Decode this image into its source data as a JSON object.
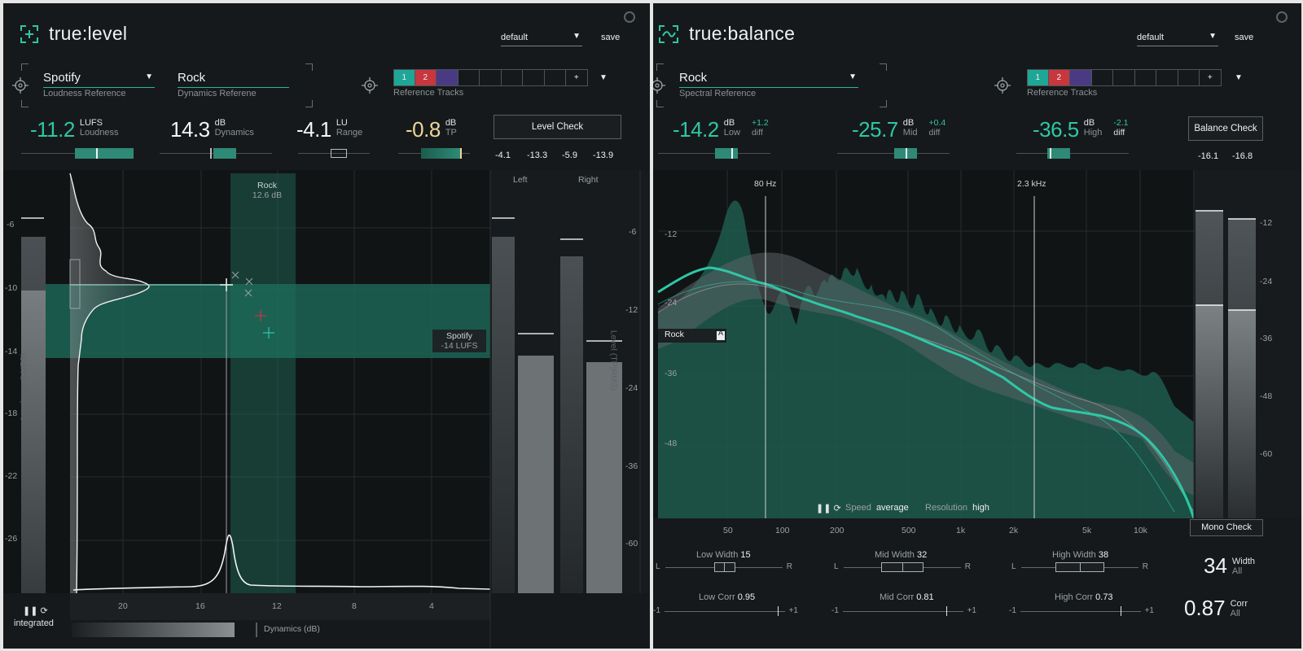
{
  "true_level": {
    "logo": "true:level",
    "preset": "default",
    "save_label": "save",
    "loudness_ref": {
      "value": "Spotify",
      "caption": "Loudness Reference"
    },
    "dynamics_ref": {
      "value": "Rock",
      "caption": "Dynamics Referene"
    },
    "reference_tracks": {
      "caption": "Reference Tracks",
      "slots": [
        "1",
        "2",
        "",
        "",
        "",
        "",
        "",
        "",
        "+"
      ],
      "colors": [
        "#1ea796",
        "#c8363e",
        "#4a3a84"
      ]
    },
    "meters": [
      {
        "value": "-11.2",
        "unit": "LUFS",
        "label": "Loudness",
        "color": "#2ec7a6"
      },
      {
        "value": "14.3",
        "unit": "dB",
        "label": "Dynamics",
        "color": "#f2f4f5"
      },
      {
        "value": "-4.1",
        "unit": "LU",
        "label": "Range",
        "color": "#f2f4f5"
      },
      {
        "value": "-0.8",
        "unit": "dB",
        "label": "TP",
        "color": "#ecd79a"
      }
    ],
    "level_check_label": "Level Check",
    "level_check_values": [
      "-4.1",
      "-13.3",
      "-5.9",
      "-13.9"
    ],
    "loudness_axis_label": "Loudness (LUFS)",
    "loudness_ticks": [
      "-6",
      "-10",
      "-14",
      "-18",
      "-22",
      "-26"
    ],
    "dynamics_ticks": [
      "20",
      "16",
      "12",
      "8",
      "4"
    ],
    "dynamics_axis_label": "Dynamics (dB)",
    "rock_band": {
      "name": "Rock",
      "value": "12.6 dB"
    },
    "spotify_band": {
      "name": "Spotify",
      "value": "-14 LUFS"
    },
    "channels": [
      "Left",
      "Right"
    ],
    "level_axis_label": "Level (TP|RMS)",
    "level_ticks": [
      "-6",
      "-12",
      "-24",
      "-36",
      "-60"
    ],
    "mode": "integrated",
    "meter_fill": {
      "left_peak": 0.9,
      "left_rms": 0.46,
      "right_peak": 0.67,
      "right_rms": 0.44
    }
  },
  "true_balance": {
    "logo": "true:balance",
    "preset": "default",
    "save_label": "save",
    "spectral_ref": {
      "value": "Rock",
      "caption": "Spectral Reference"
    },
    "reference_tracks": {
      "caption": "Reference Tracks",
      "slots": [
        "1",
        "2",
        "",
        "",
        "",
        "",
        "",
        "",
        "+"
      ],
      "colors": [
        "#1ea796",
        "#c8363e",
        "#4a3a84"
      ]
    },
    "meters": [
      {
        "value": "-14.2",
        "unit": "dB",
        "label": "Low",
        "diff": "+1.2",
        "diff_label": "diff"
      },
      {
        "value": "-25.7",
        "unit": "dB",
        "label": "Mid",
        "diff": "+0.4",
        "diff_label": "diff"
      },
      {
        "value": "-36.5",
        "unit": "dB",
        "label": "High",
        "diff": "-2.1",
        "diff_label": "diff"
      }
    ],
    "balance_check_label": "Balance Check",
    "balance_check_values": [
      "-16.1",
      "-16.8"
    ],
    "markers": [
      "80 Hz",
      "2.3 kHz"
    ],
    "db_ticks_left": [
      "-12",
      "-24",
      "-36",
      "-48"
    ],
    "db_ticks_right": [
      "-12",
      "-24",
      "-36",
      "-48",
      "-60"
    ],
    "freq_ticks": [
      "50",
      "100",
      "200",
      "500",
      "1k",
      "2k",
      "5k",
      "10k"
    ],
    "curve_label": "Rock",
    "curve_badge": "A",
    "speed_label": "Speed",
    "speed_value": "average",
    "resolution_label": "Resolution",
    "resolution_value": "high",
    "mono_check_label": "Mono Check",
    "widths": [
      {
        "label": "Low Width",
        "value": "15"
      },
      {
        "label": "Mid Width",
        "value": "32"
      },
      {
        "label": "High Width",
        "value": "38"
      }
    ],
    "corrs": [
      {
        "label": "Low Corr",
        "value": "0.95"
      },
      {
        "label": "Mid Corr",
        "value": "0.81"
      },
      {
        "label": "High Corr",
        "value": "0.73"
      }
    ],
    "slider_l": "L",
    "slider_r": "R",
    "corr_min": "-1",
    "corr_max": "+1",
    "width_all": {
      "value": "34",
      "label": "Width",
      "sub": "All"
    },
    "corr_all": {
      "value": "0.87",
      "label": "Corr",
      "sub": "All"
    }
  }
}
